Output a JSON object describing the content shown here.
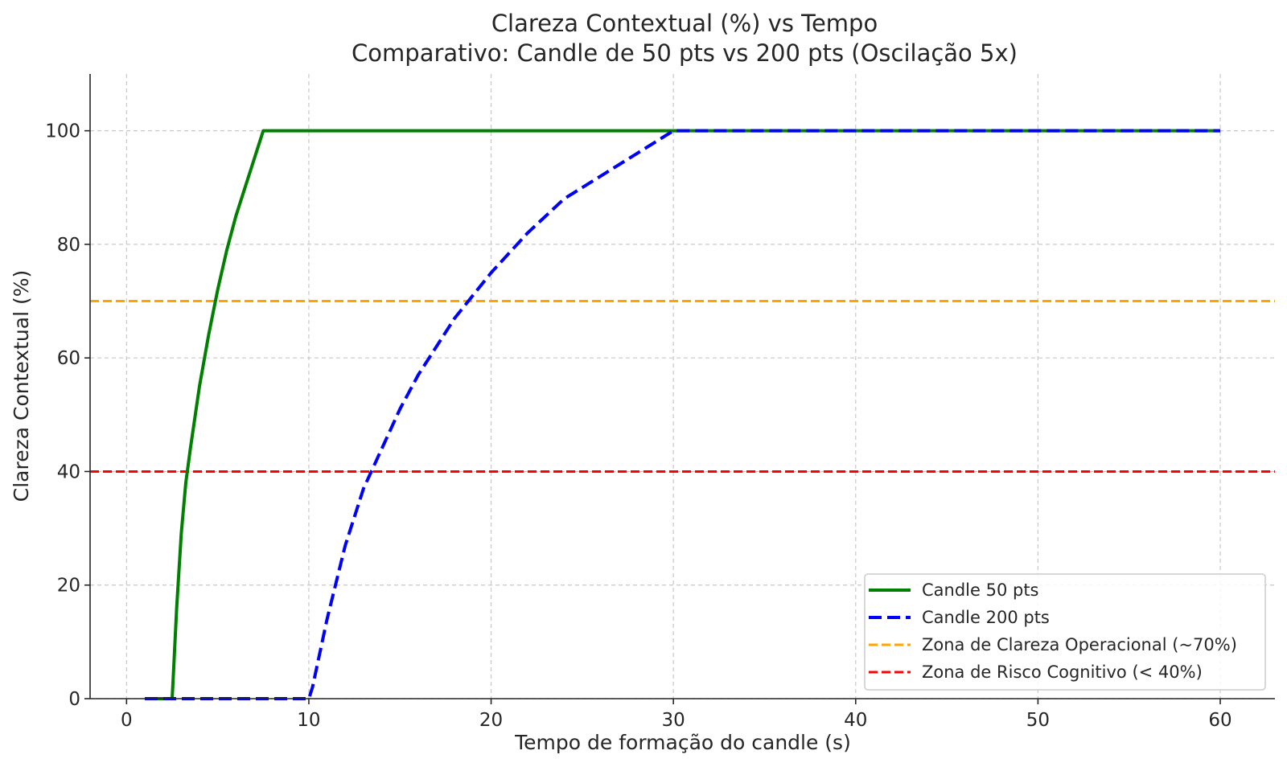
{
  "chart_data": {
    "type": "line",
    "title": "Clareza Contextual (%) vs Tempo",
    "subtitle": "Comparativo: Candle de 50 pts vs 200 pts (Oscilação 5x)",
    "xlabel": "Tempo de formação do candle (s)",
    "ylabel": "Clareza Contextual (%)",
    "xlim": [
      -2,
      63
    ],
    "ylim": [
      0,
      110
    ],
    "xticks": [
      0,
      10,
      20,
      30,
      40,
      50,
      60
    ],
    "yticks": [
      0,
      20,
      40,
      60,
      80,
      100
    ],
    "grid": true,
    "legend_position": "lower-right",
    "series": [
      {
        "name": "Candle 50 pts",
        "color": "#008000",
        "style": "solid",
        "x": [
          1,
          2.5,
          2.55,
          2.75,
          3,
          3.25,
          3.5,
          4,
          4.5,
          5,
          5.5,
          6,
          6.5,
          7,
          7.5,
          10,
          20,
          30,
          40,
          50,
          60
        ],
        "y": [
          0,
          0,
          3,
          16,
          29,
          38,
          44,
          55,
          64,
          72,
          79,
          85,
          90,
          95,
          100,
          100,
          100,
          100,
          100,
          100,
          100
        ]
      },
      {
        "name": "Candle 200 pts",
        "color": "#0000ff",
        "style": "dashed",
        "x": [
          1,
          10,
          10.2,
          11,
          12,
          13,
          14,
          15,
          16,
          18,
          20,
          22,
          24,
          26,
          28,
          30,
          40,
          50,
          60
        ],
        "y": [
          0,
          0,
          2,
          14,
          27,
          37,
          44,
          51,
          57,
          67,
          75,
          82,
          88,
          92,
          96,
          100,
          100,
          100,
          100
        ]
      }
    ],
    "reference_lines": [
      {
        "name": "Zona de Clareza Operacional (~70%)",
        "y": 70,
        "color": "#ffa500",
        "style": "dashed"
      },
      {
        "name": "Zona de Risco Cognitivo (< 40%)",
        "y": 40,
        "color": "#ff0000",
        "style": "dashed"
      }
    ]
  }
}
